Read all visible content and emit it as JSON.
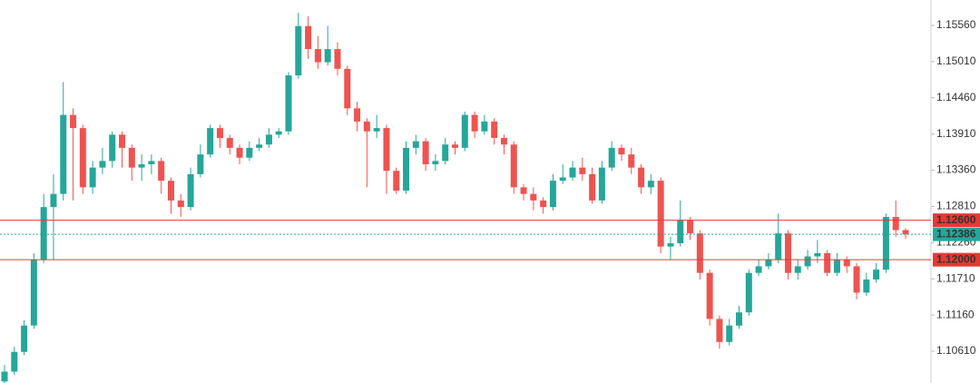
{
  "chart_data": {
    "type": "candlestick",
    "up_color": "#26a69a",
    "down_color": "#ef5350",
    "ylim": [
      1.10127,
      1.15946
    ],
    "yticks": [
      {
        "value": 1.1556,
        "label": "1.15560"
      },
      {
        "value": 1.1501,
        "label": "1.15010"
      },
      {
        "value": 1.1446,
        "label": "1.14460"
      },
      {
        "value": 1.1391,
        "label": "1.13910"
      },
      {
        "value": 1.1336,
        "label": "1.13360"
      },
      {
        "value": 1.1281,
        "label": "1.12810"
      },
      {
        "value": 1.1226,
        "label": "1.12260"
      },
      {
        "value": 1.1171,
        "label": "1.11710"
      },
      {
        "value": 1.1116,
        "label": "1.11160"
      },
      {
        "value": 1.1061,
        "label": "1.10610"
      }
    ],
    "levels": [
      {
        "value": 1.126,
        "label": "1.12600",
        "color": "#e53935",
        "style": "solid"
      },
      {
        "value": 1.12,
        "label": "1.12000",
        "color": "#e53935",
        "style": "solid"
      },
      {
        "value": 1.12386,
        "label": "1.12386",
        "color": "#26a69a",
        "style": "dashed"
      }
    ],
    "open": [
      1.1015,
      1.103,
      1.106,
      1.11,
      1.12,
      1.128,
      1.13,
      1.142,
      1.14,
      1.131,
      1.134,
      1.135,
      1.139,
      1.137,
      1.134,
      1.1345,
      1.135,
      1.132,
      1.129,
      1.128,
      1.133,
      1.136,
      1.14,
      1.1385,
      1.137,
      1.1355,
      1.137,
      1.1375,
      1.139,
      1.1395,
      1.148,
      1.1555,
      1.152,
      1.15,
      1.152,
      1.149,
      1.143,
      1.141,
      1.1395,
      1.14,
      1.1335,
      1.1305,
      1.137,
      1.138,
      1.1345,
      1.135,
      1.1375,
      1.137,
      1.142,
      1.1395,
      1.141,
      1.1385,
      1.1375,
      1.131,
      1.13,
      1.129,
      1.128,
      1.132,
      1.1325,
      1.134,
      1.133,
      1.129,
      1.134,
      1.137,
      1.136,
      1.134,
      1.131,
      1.132,
      1.122,
      1.1225,
      1.126,
      1.124,
      1.118,
      1.111,
      1.1075,
      1.11,
      1.112,
      1.118,
      1.119,
      1.12,
      1.124,
      1.118,
      1.119,
      1.1205,
      1.121,
      1.118,
      1.12,
      1.119,
      1.115,
      1.117,
      1.1185,
      1.1265,
      1.1245
    ],
    "high": [
      1.104,
      1.1068,
      1.1108,
      1.121,
      1.13,
      1.133,
      1.147,
      1.143,
      1.1405,
      1.135,
      1.137,
      1.1395,
      1.1395,
      1.1375,
      1.136,
      1.136,
      1.1355,
      1.1325,
      1.13,
      1.134,
      1.1375,
      1.1405,
      1.1405,
      1.139,
      1.1375,
      1.138,
      1.1385,
      1.14,
      1.14,
      1.1485,
      1.1575,
      1.157,
      1.154,
      1.1555,
      1.153,
      1.1495,
      1.144,
      1.1415,
      1.142,
      1.1405,
      1.134,
      1.138,
      1.139,
      1.1385,
      1.136,
      1.1385,
      1.138,
      1.1425,
      1.1425,
      1.142,
      1.1415,
      1.139,
      1.138,
      1.1315,
      1.131,
      1.1295,
      1.133,
      1.1345,
      1.135,
      1.1355,
      1.134,
      1.135,
      1.138,
      1.1375,
      1.137,
      1.1345,
      1.133,
      1.1325,
      1.1235,
      1.129,
      1.1265,
      1.1245,
      1.1185,
      1.1115,
      1.111,
      1.113,
      1.1185,
      1.12,
      1.121,
      1.127,
      1.1245,
      1.12,
      1.1215,
      1.123,
      1.1215,
      1.121,
      1.1205,
      1.1195,
      1.118,
      1.1195,
      1.127,
      1.129,
      1.1248
    ],
    "low": [
      1.101,
      1.1025,
      1.1055,
      1.1095,
      1.1195,
      1.12,
      1.129,
      1.129,
      1.13,
      1.13,
      1.133,
      1.134,
      1.134,
      1.132,
      1.132,
      1.133,
      1.13,
      1.127,
      1.1265,
      1.1275,
      1.1325,
      1.1355,
      1.137,
      1.136,
      1.1345,
      1.135,
      1.1365,
      1.137,
      1.1385,
      1.139,
      1.1475,
      1.1505,
      1.149,
      1.1495,
      1.148,
      1.142,
      1.1395,
      1.131,
      1.1385,
      1.13,
      1.13,
      1.13,
      1.136,
      1.1335,
      1.1335,
      1.1345,
      1.136,
      1.1365,
      1.1385,
      1.139,
      1.1375,
      1.136,
      1.13,
      1.129,
      1.1275,
      1.127,
      1.1275,
      1.1315,
      1.132,
      1.132,
      1.1285,
      1.1285,
      1.1335,
      1.135,
      1.133,
      1.13,
      1.13,
      1.121,
      1.12,
      1.122,
      1.123,
      1.117,
      1.11,
      1.1065,
      1.107,
      1.1095,
      1.1115,
      1.1175,
      1.1185,
      1.1195,
      1.117,
      1.117,
      1.1185,
      1.1195,
      1.1175,
      1.1175,
      1.118,
      1.114,
      1.1145,
      1.1165,
      1.118,
      1.1235,
      1.1232
    ],
    "close": [
      1.103,
      1.106,
      1.11,
      1.12,
      1.128,
      1.13,
      1.142,
      1.14,
      1.131,
      1.134,
      1.135,
      1.139,
      1.137,
      1.134,
      1.1345,
      1.135,
      1.132,
      1.129,
      1.128,
      1.133,
      1.136,
      1.14,
      1.1385,
      1.137,
      1.1355,
      1.137,
      1.1375,
      1.139,
      1.1395,
      1.148,
      1.1555,
      1.152,
      1.15,
      1.152,
      1.149,
      1.143,
      1.141,
      1.1395,
      1.14,
      1.1335,
      1.1305,
      1.137,
      1.138,
      1.1345,
      1.135,
      1.1375,
      1.137,
      1.142,
      1.1395,
      1.141,
      1.1385,
      1.1375,
      1.131,
      1.13,
      1.129,
      1.128,
      1.132,
      1.1325,
      1.134,
      1.133,
      1.129,
      1.134,
      1.137,
      1.136,
      1.134,
      1.131,
      1.132,
      1.122,
      1.1225,
      1.126,
      1.124,
      1.118,
      1.111,
      1.1075,
      1.11,
      1.112,
      1.118,
      1.119,
      1.12,
      1.124,
      1.118,
      1.119,
      1.1205,
      1.121,
      1.118,
      1.12,
      1.119,
      1.115,
      1.117,
      1.1185,
      1.1265,
      1.1245,
      1.12386
    ]
  }
}
